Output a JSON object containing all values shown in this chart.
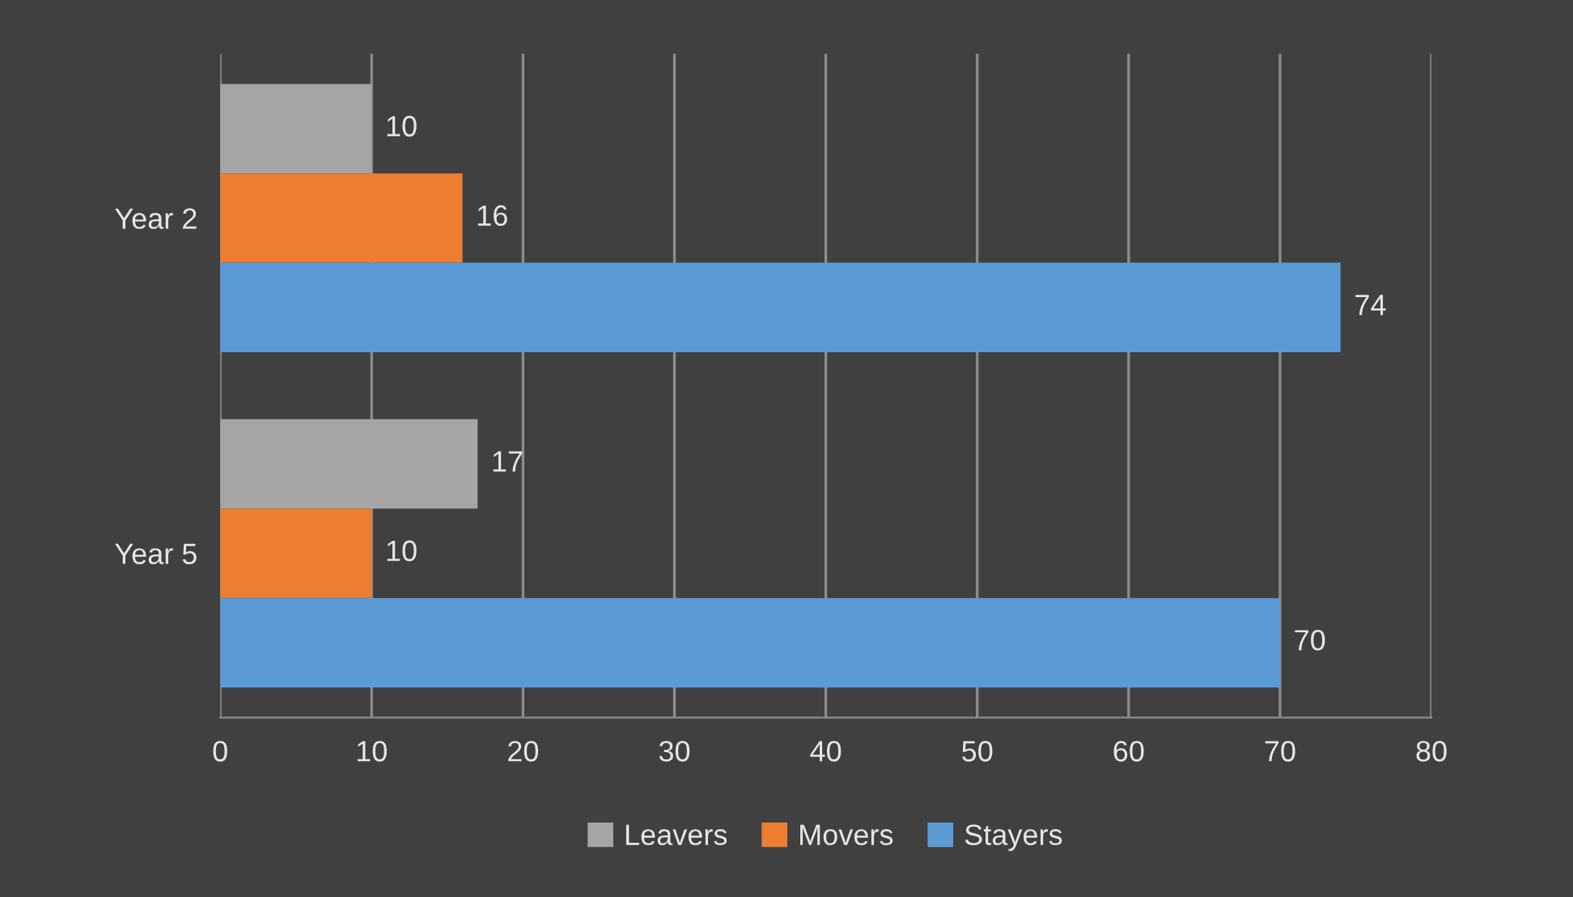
{
  "chart_data": {
    "type": "bar",
    "orientation": "horizontal",
    "categories": [
      "Year 2",
      "Year 5"
    ],
    "series": [
      {
        "name": "Leavers",
        "color": "#a5a5a5",
        "values": [
          10,
          17
        ]
      },
      {
        "name": "Movers",
        "color": "#ed7d31",
        "values": [
          16,
          10
        ]
      },
      {
        "name": "Stayers",
        "color": "#5b9bd5",
        "values": [
          74,
          70
        ]
      }
    ],
    "xlim": [
      0,
      80
    ],
    "xticks": [
      0,
      10,
      20,
      30,
      40,
      50,
      60,
      70,
      80
    ],
    "grid": "x",
    "legend": "bottom",
    "data_labels": true
  }
}
